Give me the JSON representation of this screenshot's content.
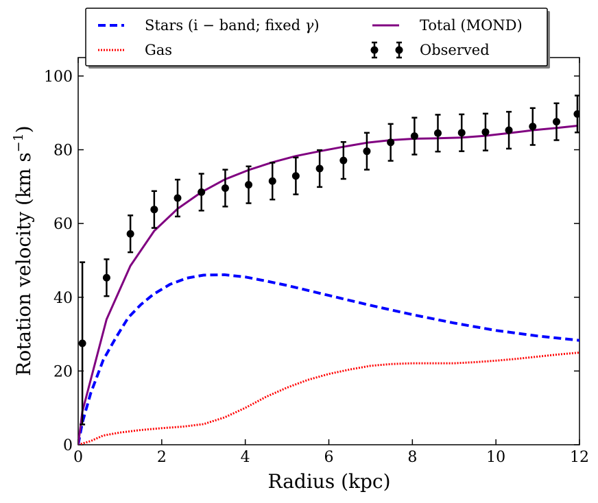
{
  "chart_data": {
    "type": "line",
    "title": "",
    "xlabel": "Radius (kpc)",
    "ylabel": "Rotation velocity (km s",
    "ylabel_sup": "−1",
    "ylabel_close": ")",
    "xlim": [
      0,
      12
    ],
    "ylim": [
      0,
      105
    ],
    "xticks": [
      0,
      2,
      4,
      6,
      8,
      10,
      12
    ],
    "yticks": [
      0,
      20,
      40,
      60,
      80,
      100
    ],
    "grid": false,
    "legend_position": "top, outside plot",
    "series": [
      {
        "name": "Stars (i − band;  fixed γ)",
        "label_parts": [
          "Stars (i − band;  fixed ",
          "γ",
          ")"
        ],
        "style": "dashed",
        "color": "#0000ff",
        "x": [
          0,
          0.1,
          0.3,
          0.6,
          0.9,
          1.2,
          1.5,
          1.8,
          2.2,
          2.6,
          3.0,
          3.5,
          4.0,
          4.5,
          5.0,
          6.0,
          7.0,
          8.0,
          9.0,
          10.0,
          11.0,
          12.0
        ],
        "y": [
          0,
          6,
          14,
          23,
          29,
          34.5,
          38,
          40.8,
          43.5,
          45.2,
          46,
          46.1,
          45.5,
          44.4,
          43.2,
          40.5,
          37.8,
          35.3,
          33,
          31,
          29.5,
          28.3
        ]
      },
      {
        "name": "Gas",
        "style": "dotted",
        "color": "#ff0000",
        "x": [
          0,
          0.3,
          0.6,
          1.0,
          1.5,
          2.0,
          2.5,
          3.0,
          3.5,
          4.0,
          4.5,
          5.0,
          5.5,
          6.0,
          6.5,
          7.0,
          7.5,
          8.0,
          8.5,
          9.0,
          9.5,
          10.0,
          10.5,
          11.0,
          11.5,
          12.0
        ],
        "y": [
          0,
          1,
          2.5,
          3.3,
          4,
          4.5,
          4.9,
          5.6,
          7.4,
          10,
          13,
          15.5,
          17.6,
          19.2,
          20.4,
          21.4,
          21.9,
          22.1,
          22.1,
          22.1,
          22.4,
          22.8,
          23.3,
          23.9,
          24.5,
          25
        ]
      },
      {
        "name": "Total (MOND)",
        "style": "solid",
        "color": "#800080",
        "x": [
          0,
          0.1,
          0.68,
          1.25,
          1.82,
          2.38,
          2.95,
          3.52,
          4.08,
          4.65,
          5.21,
          5.78,
          6.35,
          6.91,
          7.48,
          8.05,
          8.61,
          9.18,
          9.75,
          10.31,
          10.88,
          11.45,
          11.95
        ],
        "y": [
          0,
          9,
          34,
          48.5,
          58,
          64,
          68.5,
          72,
          74.5,
          76.6,
          78.3,
          79.6,
          80.8,
          81.9,
          82.6,
          83,
          83.1,
          83.3,
          83.8,
          84.5,
          85.3,
          85.9,
          86.5
        ]
      },
      {
        "name": "Observed",
        "style": "points with error bars",
        "color": "#000000",
        "x": [
          0.1,
          0.68,
          1.25,
          1.82,
          2.38,
          2.95,
          3.52,
          4.08,
          4.65,
          5.21,
          5.78,
          6.35,
          6.91,
          7.48,
          8.05,
          8.61,
          9.18,
          9.75,
          10.31,
          10.88,
          11.45,
          11.95
        ],
        "y": [
          27.5,
          45.3,
          57.2,
          63.8,
          66.9,
          68.5,
          69.6,
          70.5,
          71.5,
          72.9,
          74.9,
          77.1,
          79.6,
          82,
          83.7,
          84.5,
          84.6,
          84.8,
          85.3,
          86.3,
          87.6,
          89.7
        ],
        "err": [
          22,
          5,
          5,
          5,
          5,
          5,
          5,
          5,
          5,
          5,
          5,
          5,
          5,
          5,
          5,
          5,
          5,
          5,
          5,
          5,
          5,
          5
        ]
      }
    ]
  }
}
